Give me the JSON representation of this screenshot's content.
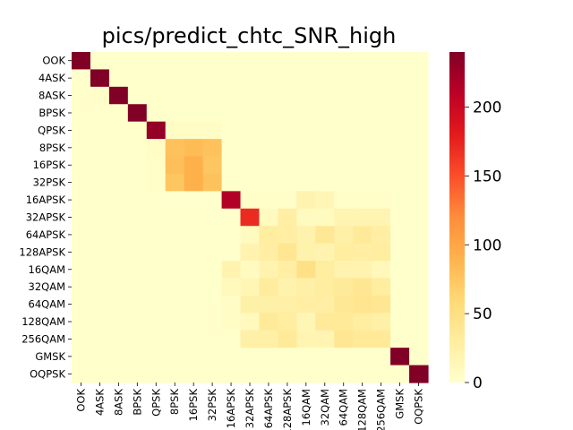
{
  "chart_data": {
    "type": "heatmap",
    "title": "pics/predict_chtc_SNR_high",
    "xlabel": "",
    "ylabel": "",
    "x_labels": [
      "OOK",
      "4ASK",
      "8ASK",
      "BPSK",
      "QPSK",
      "8PSK",
      "16PSK",
      "32PSK",
      "16APSK",
      "32APSK",
      "64APSK",
      "128APSK",
      "16QAM",
      "32QAM",
      "64QAM",
      "128QAM",
      "256QAM",
      "GMSK",
      "OQPSK"
    ],
    "y_labels": [
      "OOK",
      "4ASK",
      "8ASK",
      "BPSK",
      "QPSK",
      "8PSK",
      "16PSK",
      "32PSK",
      "16APSK",
      "32APSK",
      "64APSK",
      "128APSK",
      "16QAM",
      "32QAM",
      "64QAM",
      "128QAM",
      "256QAM",
      "GMSK",
      "OQPSK"
    ],
    "colorbar": {
      "min": 0,
      "max": 240,
      "ticks": [
        0,
        50,
        100,
        150,
        200
      ],
      "colormap": "YlOrRd"
    },
    "values": [
      [
        240,
        0,
        0,
        0,
        0,
        0,
        0,
        0,
        0,
        0,
        0,
        0,
        0,
        0,
        0,
        0,
        0,
        0,
        0
      ],
      [
        0,
        240,
        0,
        0,
        0,
        0,
        0,
        0,
        0,
        0,
        0,
        0,
        0,
        0,
        0,
        0,
        0,
        0,
        0
      ],
      [
        0,
        2,
        240,
        0,
        0,
        0,
        0,
        0,
        0,
        0,
        0,
        0,
        0,
        0,
        0,
        0,
        0,
        0,
        0
      ],
      [
        0,
        0,
        0,
        240,
        0,
        0,
        0,
        0,
        0,
        0,
        0,
        0,
        0,
        0,
        0,
        0,
        0,
        0,
        0
      ],
      [
        0,
        0,
        0,
        0,
        230,
        5,
        5,
        5,
        0,
        0,
        0,
        0,
        0,
        0,
        0,
        0,
        0,
        0,
        0
      ],
      [
        0,
        0,
        0,
        0,
        5,
        78,
        82,
        78,
        0,
        0,
        0,
        0,
        0,
        0,
        0,
        0,
        0,
        0,
        0
      ],
      [
        0,
        0,
        0,
        0,
        3,
        80,
        92,
        75,
        0,
        0,
        0,
        0,
        0,
        0,
        0,
        0,
        0,
        0,
        0
      ],
      [
        0,
        0,
        0,
        0,
        3,
        75,
        92,
        78,
        0,
        0,
        0,
        0,
        0,
        0,
        0,
        0,
        0,
        0,
        0
      ],
      [
        0,
        0,
        0,
        0,
        0,
        0,
        0,
        0,
        215,
        3,
        3,
        3,
        20,
        15,
        3,
        3,
        3,
        0,
        0
      ],
      [
        0,
        0,
        0,
        0,
        0,
        0,
        0,
        0,
        0,
        170,
        8,
        28,
        8,
        8,
        18,
        18,
        18,
        0,
        0
      ],
      [
        0,
        0,
        0,
        0,
        0,
        0,
        0,
        0,
        0,
        8,
        30,
        28,
        22,
        38,
        25,
        35,
        28,
        0,
        0
      ],
      [
        0,
        0,
        0,
        0,
        0,
        0,
        0,
        0,
        0,
        20,
        28,
        40,
        22,
        20,
        30,
        28,
        30,
        0,
        0
      ],
      [
        0,
        0,
        0,
        0,
        0,
        0,
        0,
        0,
        20,
        8,
        20,
        28,
        48,
        30,
        20,
        20,
        12,
        0,
        0
      ],
      [
        0,
        0,
        0,
        0,
        0,
        0,
        0,
        0,
        10,
        15,
        32,
        22,
        25,
        30,
        35,
        40,
        30,
        0,
        0
      ],
      [
        0,
        0,
        0,
        0,
        0,
        0,
        0,
        0,
        5,
        25,
        25,
        25,
        28,
        28,
        38,
        42,
        40,
        0,
        0
      ],
      [
        0,
        0,
        0,
        0,
        0,
        0,
        0,
        0,
        5,
        10,
        35,
        30,
        15,
        35,
        35,
        30,
        25,
        0,
        0
      ],
      [
        0,
        0,
        0,
        0,
        0,
        0,
        0,
        0,
        0,
        25,
        25,
        35,
        18,
        18,
        40,
        35,
        35,
        0,
        0
      ],
      [
        0,
        0,
        0,
        0,
        0,
        0,
        0,
        0,
        0,
        0,
        0,
        0,
        0,
        0,
        0,
        0,
        0,
        240,
        0
      ],
      [
        0,
        0,
        0,
        0,
        0,
        0,
        0,
        0,
        0,
        0,
        0,
        0,
        0,
        0,
        0,
        0,
        0,
        0,
        240
      ]
    ]
  }
}
